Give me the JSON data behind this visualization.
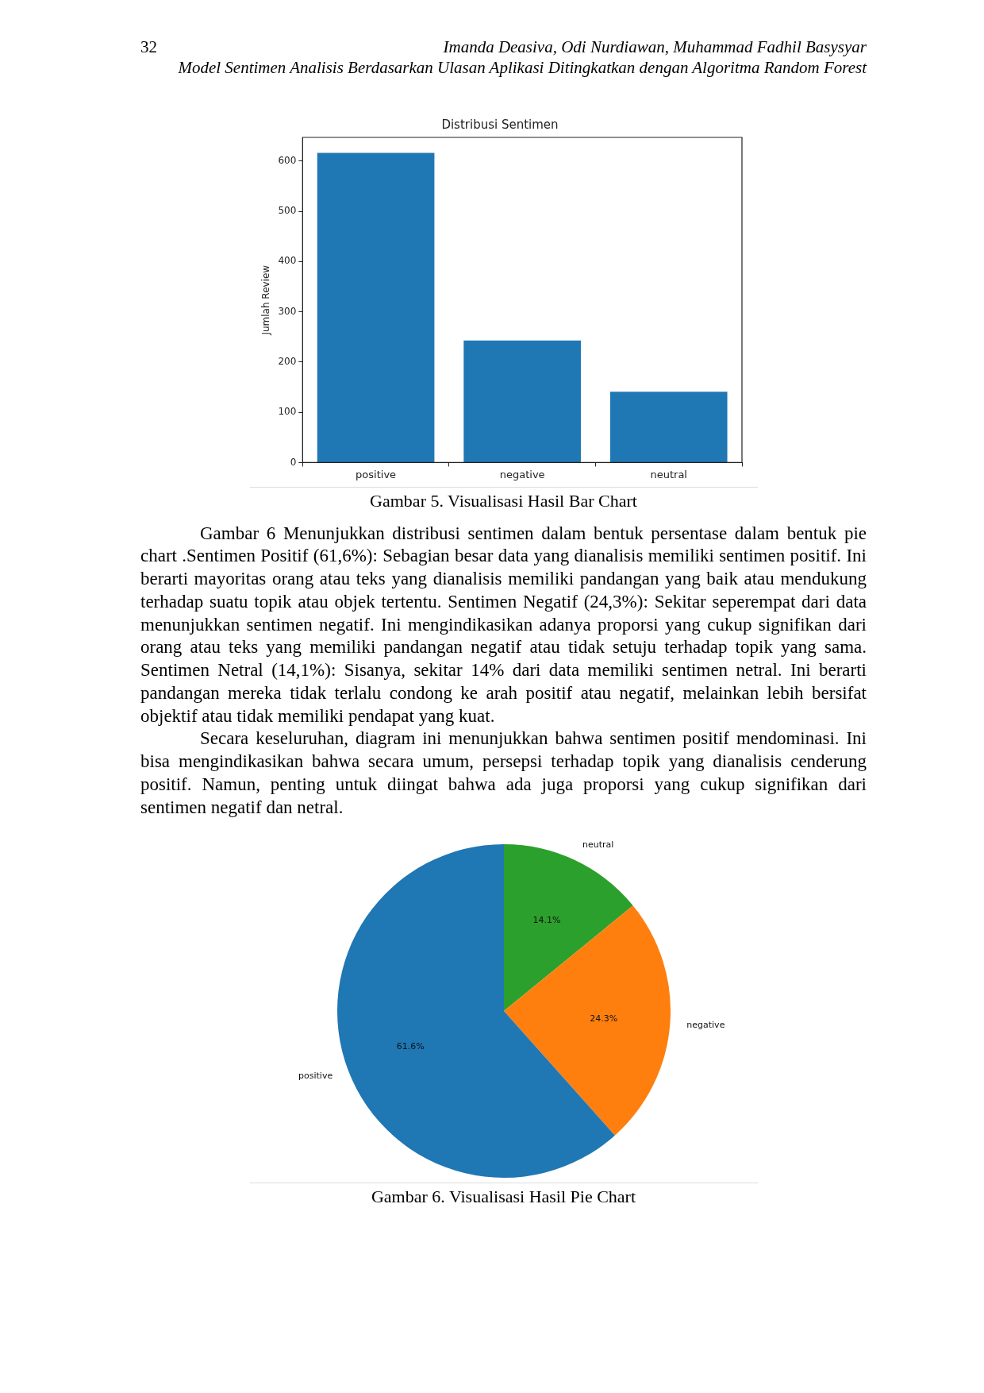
{
  "chart_data": [
    {
      "type": "other",
      "annotations": [
        "32",
        "Imanda Deasiva, Odi Nurdiawan, Muhammad Fadhil Basysyar",
        "Model Sentimen Analisis Berdasarkan Ulasan Aplikasi Ditingkatkan dengan Algoritma Random Forest"
      ]
    },
    {
      "type": "bar",
      "title": "Distribusi Sentimen",
      "ylabel": "Jumlah Review",
      "categories": [
        "positive",
        "negative",
        "neutral"
      ],
      "values": [
        616,
        243,
        141
      ],
      "color": "#1f77b4",
      "ylim": [
        0,
        647
      ],
      "yticks": [
        0,
        100,
        200,
        300,
        400,
        500,
        600
      ],
      "annotations": [
        "Gambar 5. Visualisasi Hasil Bar Chart"
      ]
    },
    {
      "type": "other",
      "annotations": [
        "Gambar 6 Menunjukkan distribusi sentimen dalam bentuk persentase dalam bentuk pie chart .Sentimen Positif (61,6%): Sebagian besar data yang dianalisis memiliki sentimen positif. Ini berarti mayoritas orang atau teks yang dianalisis memiliki pandangan yang baik atau mendukung terhadap suatu topik atau objek tertentu. Sentimen Negatif (24,3%): Sekitar seperempat dari data menunjukkan sentimen negatif. Ini mengindikasikan adanya proporsi yang cukup signifikan dari orang atau teks yang memiliki pandangan negatif atau tidak setuju terhadap topik yang sama. Sentimen Netral (14,1%): Sisanya, sekitar 14% dari data memiliki sentimen netral. Ini berarti pandangan mereka tidak terlalu condong ke arah positif atau negatif, melainkan lebih bersifat objektif atau tidak memiliki pendapat yang kuat.",
        "Secara keseluruhan, diagram ini menunjukkan bahwa sentimen positif mendominasi. Ini bisa mengindikasikan bahwa secara umum, persepsi terhadap topik yang dianalisis cenderung positif. Namun, penting untuk diingat bahwa ada juga proporsi yang cukup signifikan dari sentimen negatif dan netral."
      ]
    },
    {
      "type": "pie",
      "categories": [
        "neutral",
        "negative",
        "positive"
      ],
      "values": [
        14.1,
        24.3,
        61.6
      ],
      "colors": [
        "#2ca02c",
        "#ff7f0e",
        "#1f77b4"
      ],
      "value_labels": [
        "14.1%",
        "24.3%",
        "61.6%"
      ],
      "annotations": [
        "Gambar 6. Visualisasi Hasil Pie Chart"
      ]
    }
  ]
}
